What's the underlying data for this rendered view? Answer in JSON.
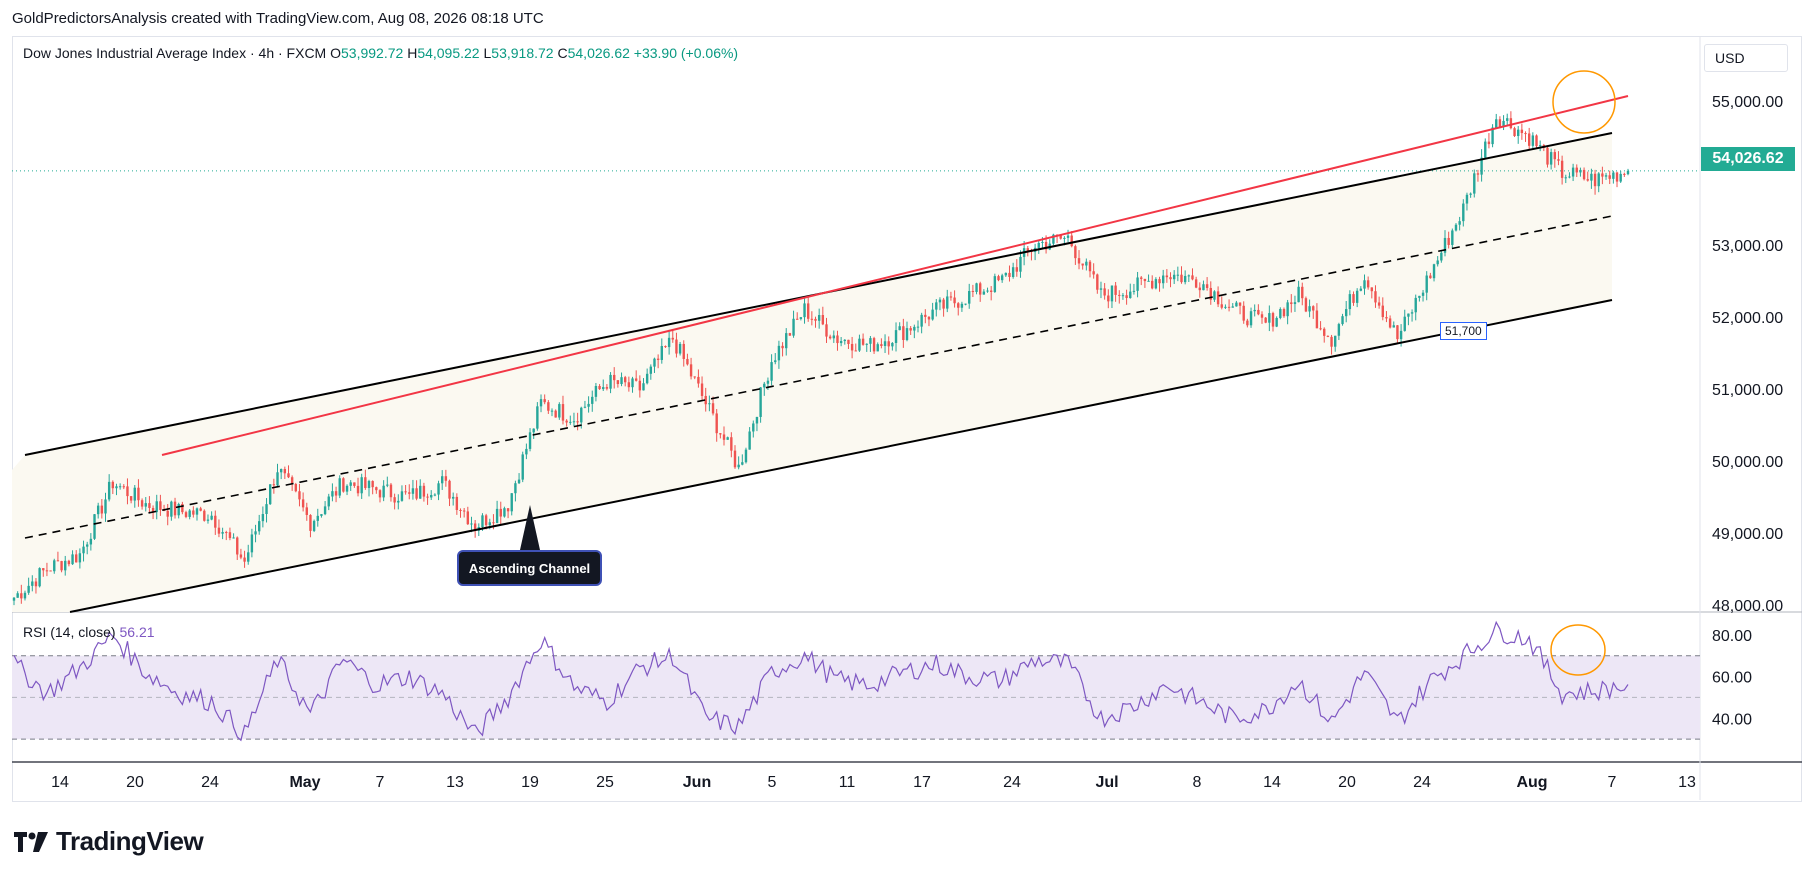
{
  "header": {
    "attribution": "GoldPredictorsAnalysis created with TradingView.com, Aug 08, 2026 08:18 UTC"
  },
  "legend": {
    "symbol": "Dow Jones Industrial Average Index · 4h · FXCM",
    "open_label": "O",
    "open": "53,992.72",
    "high_label": "H",
    "high": "54,095.22",
    "low_label": "L",
    "low": "53,918.72",
    "close_label": "C",
    "close": "54,026.62",
    "change": "+33.90 (+0.06%)"
  },
  "currency": "USD",
  "last_price_tag": "54,026.62",
  "annotations": {
    "channel_label": "Ascending Channel",
    "swing_low_label": "51,700"
  },
  "rsi": {
    "label": "RSI (14, close)",
    "value": "56.21",
    "ticks": [
      "80.00",
      "60.00",
      "40.00"
    ]
  },
  "x_axis_labels": [
    "14",
    "20",
    "24",
    "May",
    "7",
    "13",
    "19",
    "25",
    "Jun",
    "5",
    "11",
    "17",
    "24",
    "Jul",
    "8",
    "14",
    "20",
    "24",
    "Aug",
    "7",
    "13"
  ],
  "brand": {
    "name": "TradingView"
  },
  "colors": {
    "up": "#089981",
    "down": "#f23645",
    "candle_up_fill": "#26a69a",
    "rsi_line": "#7e57c2",
    "rsi_band": "#ede7f6",
    "red_line": "#f23645",
    "highlight_circle": "#ff9800",
    "price_tag": "#22ab94"
  },
  "chart_data": {
    "type": "candlestick",
    "title": "Dow Jones Industrial Average Index · 4h · FXCM",
    "price_axis_ticks": [
      "55,000.00",
      "53,000.00",
      "52,000.00",
      "51,000.00",
      "50,000.00",
      "49,000.00",
      "48,000.00"
    ],
    "ylim": [
      47900,
      55900
    ],
    "last_close": 54026.62,
    "series": [
      {
        "name": "price",
        "x": [
          "Apr 11",
          "Apr 14",
          "Apr 17",
          "Apr 20",
          "Apr 22",
          "Apr 24",
          "Apr 27",
          "Apr 29",
          "May 1",
          "May 4",
          "May 7",
          "May 10",
          "May 13",
          "May 16",
          "May 18",
          "May 21",
          "May 25",
          "May 28",
          "Jun 1",
          "Jun 4",
          "Jun 6",
          "Jun 8",
          "Jun 10",
          "Jun 12",
          "Jun 15",
          "Jun 17",
          "Jun 19",
          "Jun 22",
          "Jun 25",
          "Jun 27",
          "Jun 30",
          "Jul 2",
          "Jul 5",
          "Jul 7",
          "Jul 9",
          "Jul 12",
          "Jul 15",
          "Jul 17",
          "Jul 20",
          "Jul 22",
          "Jul 24",
          "Jul 27",
          "Jul 29",
          "Jul 31",
          "Aug 2",
          "Aug 4",
          "Aug 5",
          "Aug 6",
          "Aug 7",
          "Aug 8"
        ],
        "close": [
          48100,
          48500,
          48700,
          49700,
          49400,
          49300,
          49250,
          48600,
          49900,
          49150,
          49700,
          49600,
          49500,
          49700,
          49100,
          49400,
          50800,
          50600,
          51100,
          51000,
          51700,
          50800,
          49900,
          51400,
          52100,
          51700,
          51600,
          51800,
          52100,
          52300,
          52500,
          53000,
          53100,
          52300,
          52400,
          52600,
          52500,
          52100,
          51900,
          52300,
          51700,
          52600,
          51700,
          52600,
          53500,
          54800,
          54500,
          54000,
          53900,
          54026.62
        ]
      }
    ],
    "rsi": {
      "x": [
        "Apr 11",
        "Apr 14",
        "Apr 17",
        "Apr 20",
        "Apr 22",
        "Apr 24",
        "Apr 27",
        "Apr 29",
        "May 1",
        "May 4",
        "May 7",
        "May 10",
        "May 13",
        "May 16",
        "May 18",
        "May 21",
        "May 25",
        "May 28",
        "Jun 1",
        "Jun 4",
        "Jun 6",
        "Jun 8",
        "Jun 10",
        "Jun 12",
        "Jun 15",
        "Jun 17",
        "Jun 19",
        "Jun 22",
        "Jun 25",
        "Jun 27",
        "Jun 30",
        "Jul 2",
        "Jul 5",
        "Jul 7",
        "Jul 9",
        "Jul 12",
        "Jul 15",
        "Jul 17",
        "Jul 20",
        "Jul 22",
        "Jul 24",
        "Jul 27",
        "Jul 29",
        "Jul 31",
        "Aug 2",
        "Aug 4",
        "Aug 5",
        "Aug 6",
        "Aug 7",
        "Aug 8"
      ],
      "values": [
        66,
        52,
        64,
        80,
        62,
        52,
        48,
        32,
        68,
        42,
        68,
        56,
        60,
        52,
        32,
        50,
        78,
        55,
        48,
        64,
        70,
        40,
        36,
        62,
        70,
        58,
        56,
        62,
        66,
        60,
        58,
        68,
        66,
        40,
        46,
        56,
        48,
        40,
        44,
        58,
        38,
        62,
        38,
        58,
        70,
        82,
        78,
        52,
        53,
        56.21
      ],
      "levels": [
        70,
        50,
        30
      ]
    }
  }
}
